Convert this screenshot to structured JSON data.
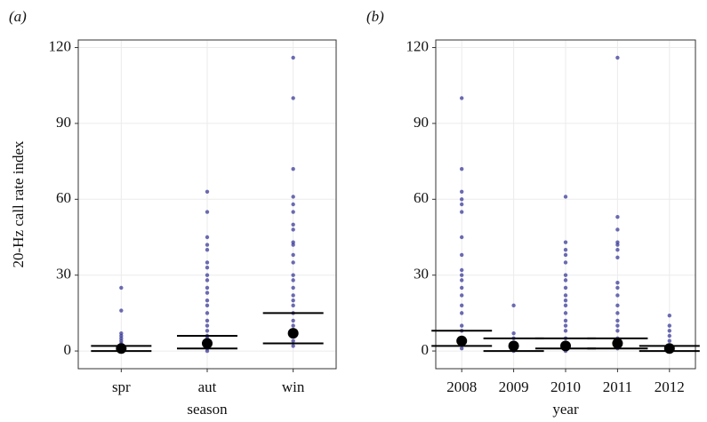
{
  "chart_data": [
    {
      "type": "strip",
      "label": "(a)",
      "x_label": "season",
      "y_label": "20-Hz call rate index",
      "categories": [
        "spr",
        "aut",
        "win"
      ],
      "points": [
        [
          25,
          16,
          7,
          6,
          5,
          4,
          3,
          2,
          1,
          0.5,
          0
        ],
        [
          63,
          55,
          45,
          42,
          40,
          35,
          33,
          30,
          28,
          25,
          23,
          20,
          18,
          15,
          12,
          10,
          8,
          6,
          5,
          4,
          3,
          2,
          1,
          0
        ],
        [
          116,
          100,
          72,
          61,
          58,
          55,
          50,
          48,
          43,
          42,
          38,
          35,
          30,
          28,
          25,
          22,
          20,
          18,
          15,
          12,
          10,
          8,
          6,
          4,
          2
        ]
      ],
      "center": [
        1,
        3,
        7
      ],
      "lower": [
        0,
        1,
        3
      ],
      "upper": [
        2,
        6,
        15
      ],
      "point_color": "#3b3b9a",
      "ylim": [
        -7,
        123
      ],
      "yticks": [
        0,
        30,
        60,
        90,
        120
      ],
      "grid": true
    },
    {
      "type": "strip",
      "label": "(b)",
      "x_label": "year",
      "categories": [
        "2008",
        "2009",
        "2010",
        "2011",
        "2012"
      ],
      "points": [
        [
          100,
          72,
          63,
          60,
          58,
          55,
          45,
          38,
          32,
          30,
          28,
          25,
          22,
          18,
          15,
          10,
          8,
          5,
          3,
          1
        ],
        [
          18,
          7,
          5,
          3,
          2,
          1,
          0
        ],
        [
          61,
          43,
          40,
          38,
          35,
          30,
          28,
          25,
          22,
          20,
          18,
          15,
          12,
          10,
          8,
          5,
          3,
          1,
          0
        ],
        [
          116,
          53,
          48,
          43,
          42,
          40,
          37,
          27,
          25,
          22,
          18,
          15,
          12,
          10,
          8,
          5,
          3,
          1
        ],
        [
          14,
          10,
          8,
          6,
          4,
          2,
          1,
          0
        ]
      ],
      "center": [
        4,
        2,
        2,
        3,
        1
      ],
      "lower": [
        2,
        0,
        1,
        1,
        0
      ],
      "upper": [
        8,
        5,
        5,
        5,
        2
      ],
      "point_color": "#3b3b9a",
      "ylim": [
        -7,
        123
      ],
      "yticks": [
        0,
        30,
        60,
        90,
        120
      ],
      "grid": true
    }
  ]
}
